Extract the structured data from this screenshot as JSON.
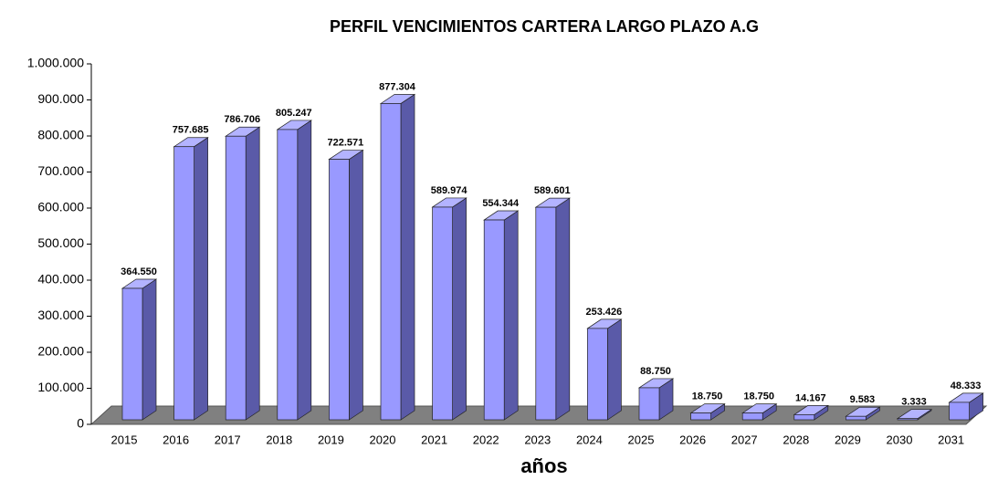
{
  "chart_data": {
    "type": "bar3d",
    "title": "PERFIL VENCIMIENTOS CARTERA LARGO PLAZO A.G",
    "x_label": "años",
    "categories": [
      "2015",
      "2016",
      "2017",
      "2018",
      "2019",
      "2020",
      "2021",
      "2022",
      "2023",
      "2024",
      "2025",
      "2026",
      "2027",
      "2028",
      "2029",
      "2030",
      "2031"
    ],
    "values": [
      364550,
      757685,
      786706,
      805247,
      722571,
      877304,
      589974,
      554344,
      589601,
      253426,
      88750,
      18750,
      18750,
      14167,
      9583,
      3333,
      48333
    ],
    "value_labels": [
      "364.550",
      "757.685",
      "786.706",
      "805.247",
      "722.571",
      "877.304",
      "589.974",
      "554.344",
      "589.601",
      "253.426",
      "88.750",
      "18.750",
      "18.750",
      "14.167",
      "9.583",
      "3.333",
      "48.333"
    ],
    "color": "#9999ff",
    "ylim": [
      0,
      1000000
    ],
    "yticks": [
      0,
      {
        "value": 100000,
        "label": "100.000"
      },
      {
        "value": 200000,
        "label": "200.000"
      },
      {
        "value": 300000,
        "label": "300.000"
      },
      {
        "value": 400000,
        "label": "400.000"
      },
      {
        "value": 500000,
        "label": "500.000"
      },
      {
        "value": 600000,
        "label": "600.000"
      },
      {
        "value": 700000,
        "label": "700.000"
      },
      {
        "value": 800000,
        "label": "800.000"
      },
      {
        "value": 900000,
        "label": "900.000"
      },
      {
        "value": 1000000,
        "label": "1.000.000"
      }
    ]
  }
}
